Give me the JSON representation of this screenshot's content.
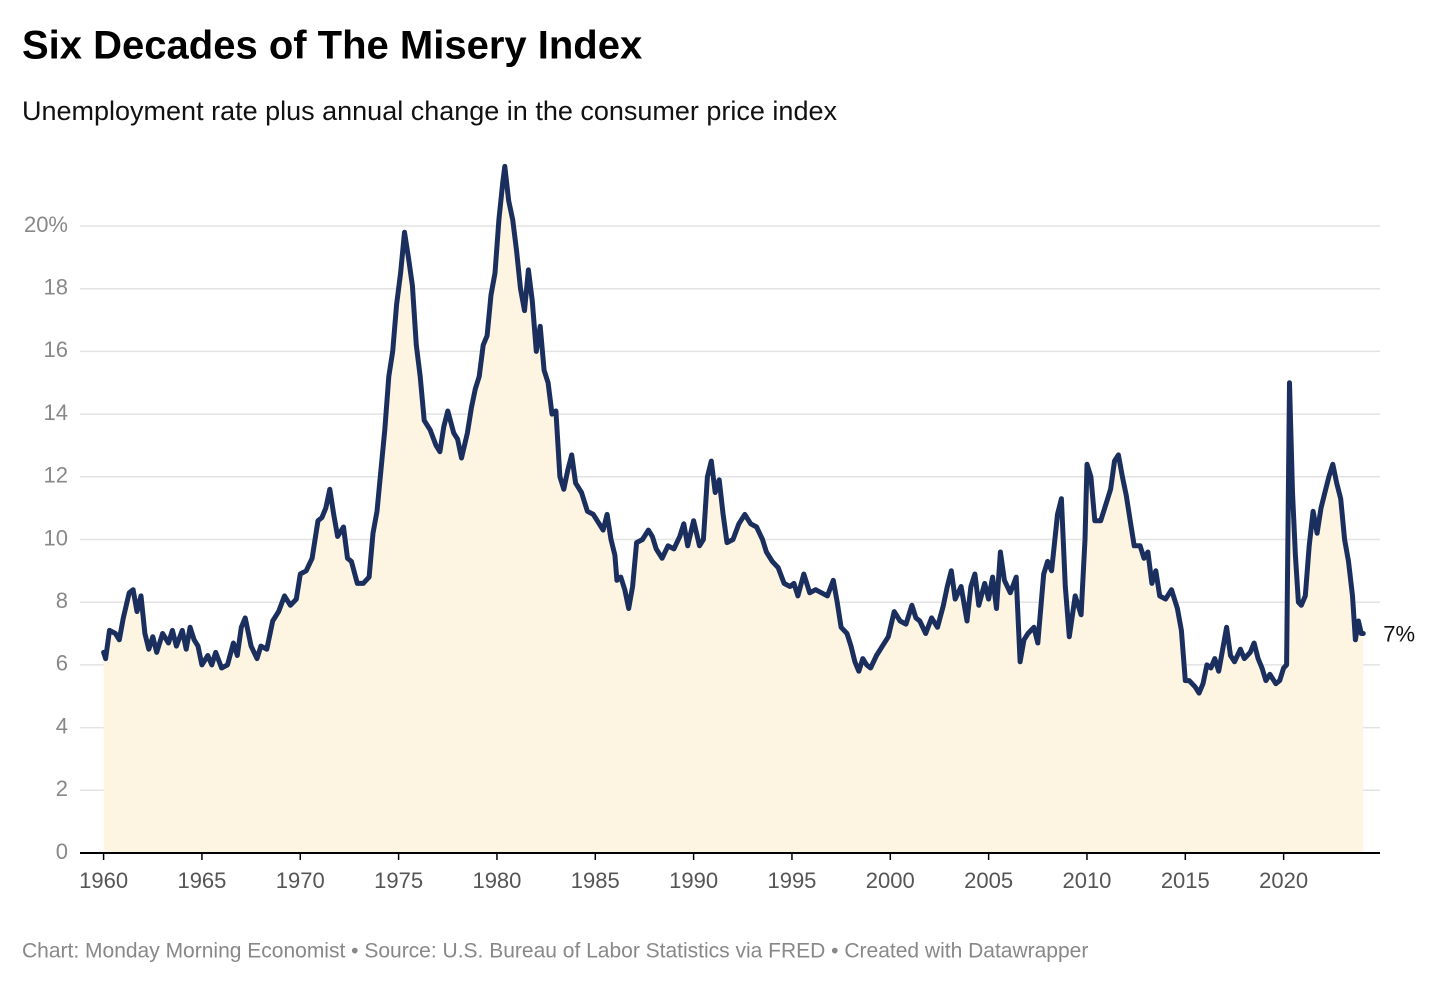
{
  "chart_data": {
    "type": "line",
    "title": "Six Decades of The Misery Index",
    "subtitle": "Unemployment rate plus annual change in the consumer price index",
    "source": "Chart: Monday Morning Economist • Source: U.S. Bureau of Labor Statistics via FRED • Created with Datawrapper",
    "end_label": "7%",
    "color": "#1b2f5e",
    "area_color": "#fdf5e1",
    "grid": true,
    "xlim": [
      1958.8,
      2024.9
    ],
    "xticks": [
      1960,
      1965,
      1970,
      1975,
      1980,
      1985,
      1990,
      1995,
      2000,
      2005,
      2010,
      2015,
      2020
    ],
    "ylim": [
      0,
      22
    ],
    "yticks": [
      0,
      2,
      4,
      6,
      8,
      10,
      12,
      14,
      16,
      18,
      {
        "value": 20,
        "label": "20%"
      }
    ],
    "x": [
      1960.0,
      1960.1,
      1960.3,
      1960.6,
      1960.8,
      1961.0,
      1961.3,
      1961.5,
      1961.7,
      1961.9,
      1962.1,
      1962.3,
      1962.5,
      1962.7,
      1963.0,
      1963.3,
      1963.5,
      1963.7,
      1964.0,
      1964.2,
      1964.4,
      1964.6,
      1964.8,
      1965.0,
      1965.3,
      1965.5,
      1965.7,
      1966.0,
      1966.3,
      1966.6,
      1966.8,
      1967.0,
      1967.2,
      1967.5,
      1967.8,
      1968.0,
      1968.3,
      1968.6,
      1968.9,
      1969.2,
      1969.5,
      1969.8,
      1970.0,
      1970.3,
      1970.6,
      1970.9,
      1971.1,
      1971.3,
      1971.5,
      1971.7,
      1971.9,
      1972.2,
      1972.4,
      1972.6,
      1972.9,
      1973.2,
      1973.5,
      1973.7,
      1973.9,
      1974.1,
      1974.3,
      1974.5,
      1974.7,
      1974.9,
      1975.1,
      1975.3,
      1975.5,
      1975.7,
      1975.9,
      1976.1,
      1976.3,
      1976.6,
      1976.9,
      1977.1,
      1977.3,
      1977.5,
      1977.8,
      1978.0,
      1978.2,
      1978.5,
      1978.7,
      1978.9,
      1979.1,
      1979.3,
      1979.5,
      1979.7,
      1979.9,
      1980.1,
      1980.3,
      1980.4,
      1980.6,
      1980.8,
      1981.0,
      1981.2,
      1981.4,
      1981.6,
      1981.8,
      1982.0,
      1982.2,
      1982.4,
      1982.6,
      1982.8,
      1983.0,
      1983.2,
      1983.4,
      1983.6,
      1983.8,
      1984.0,
      1984.3,
      1984.6,
      1984.9,
      1985.2,
      1985.4,
      1985.6,
      1985.8,
      1986.0,
      1986.1,
      1986.3,
      1986.5,
      1986.7,
      1986.9,
      1987.1,
      1987.4,
      1987.7,
      1987.9,
      1988.1,
      1988.4,
      1988.7,
      1989.0,
      1989.3,
      1989.5,
      1989.7,
      1990.0,
      1990.3,
      1990.5,
      1990.7,
      1990.9,
      1991.1,
      1991.3,
      1991.5,
      1991.7,
      1992.0,
      1992.3,
      1992.6,
      1992.9,
      1993.2,
      1993.5,
      1993.7,
      1994.0,
      1994.3,
      1994.6,
      1994.9,
      1995.1,
      1995.3,
      1995.6,
      1995.9,
      1996.2,
      1996.5,
      1996.8,
      1997.1,
      1997.3,
      1997.5,
      1997.8,
      1998.0,
      1998.2,
      1998.4,
      1998.6,
      1998.8,
      1999.0,
      1999.3,
      1999.6,
      1999.9,
      2000.2,
      2000.5,
      2000.8,
      2001.1,
      2001.3,
      2001.5,
      2001.8,
      2002.1,
      2002.4,
      2002.7,
      2002.9,
      2003.1,
      2003.3,
      2003.6,
      2003.9,
      2004.1,
      2004.3,
      2004.5,
      2004.8,
      2005.0,
      2005.2,
      2005.4,
      2005.6,
      2005.8,
      2006.1,
      2006.4,
      2006.6,
      2006.8,
      2007.0,
      2007.3,
      2007.5,
      2007.8,
      2008.0,
      2008.2,
      2008.5,
      2008.7,
      2008.9,
      2009.1,
      2009.4,
      2009.7,
      2009.9,
      2010.0,
      2010.2,
      2010.4,
      2010.7,
      2010.9,
      2011.2,
      2011.4,
      2011.6,
      2011.8,
      2012.0,
      2012.2,
      2012.4,
      2012.7,
      2012.9,
      2013.1,
      2013.3,
      2013.5,
      2013.7,
      2014.0,
      2014.3,
      2014.6,
      2014.8,
      2015.0,
      2015.2,
      2015.5,
      2015.7,
      2015.9,
      2016.1,
      2016.3,
      2016.5,
      2016.7,
      2016.9,
      2017.1,
      2017.3,
      2017.5,
      2017.8,
      2018.0,
      2018.3,
      2018.5,
      2018.7,
      2018.9,
      2019.1,
      2019.3,
      2019.6,
      2019.8,
      2020.0,
      2020.15,
      2020.3,
      2020.45,
      2020.6,
      2020.75,
      2020.9,
      2021.1,
      2021.3,
      2021.5,
      2021.7,
      2021.9,
      2022.1,
      2022.3,
      2022.5,
      2022.7,
      2022.9,
      2023.1,
      2023.3,
      2023.5,
      2023.65,
      2023.8,
      2023.95,
      2024.05
    ],
    "values": [
      6.4,
      6.2,
      7.1,
      7.0,
      6.8,
      7.5,
      8.3,
      8.4,
      7.7,
      8.2,
      7.0,
      6.5,
      6.9,
      6.4,
      7.0,
      6.7,
      7.1,
      6.6,
      7.1,
      6.5,
      7.2,
      6.8,
      6.6,
      6.0,
      6.3,
      6.0,
      6.4,
      5.9,
      6.0,
      6.7,
      6.3,
      7.2,
      7.5,
      6.6,
      6.2,
      6.6,
      6.5,
      7.4,
      7.7,
      8.2,
      7.9,
      8.1,
      8.9,
      9.0,
      9.4,
      10.6,
      10.7,
      11.0,
      11.6,
      10.8,
      10.1,
      10.4,
      9.4,
      9.3,
      8.6,
      8.6,
      8.8,
      10.2,
      10.9,
      12.2,
      13.5,
      15.2,
      16.0,
      17.5,
      18.5,
      19.8,
      19.0,
      18.1,
      16.2,
      15.2,
      13.8,
      13.5,
      13.0,
      12.8,
      13.6,
      14.1,
      13.4,
      13.2,
      12.6,
      13.4,
      14.2,
      14.8,
      15.2,
      16.2,
      16.5,
      17.8,
      18.5,
      20.2,
      21.4,
      21.9,
      20.8,
      20.2,
      19.2,
      18.0,
      17.3,
      18.6,
      17.6,
      16.0,
      16.8,
      15.4,
      15.0,
      14.0,
      14.1,
      12.0,
      11.6,
      12.2,
      12.7,
      11.8,
      11.5,
      10.9,
      10.8,
      10.5,
      10.3,
      10.8,
      10.0,
      9.5,
      8.7,
      8.8,
      8.4,
      7.8,
      8.5,
      9.9,
      10.0,
      10.3,
      10.1,
      9.7,
      9.4,
      9.8,
      9.7,
      10.1,
      10.5,
      9.8,
      10.6,
      9.8,
      10.0,
      12.0,
      12.5,
      11.5,
      11.9,
      10.8,
      9.9,
      10.0,
      10.5,
      10.8,
      10.5,
      10.4,
      10.0,
      9.6,
      9.3,
      9.1,
      8.6,
      8.5,
      8.6,
      8.2,
      8.9,
      8.3,
      8.4,
      8.3,
      8.2,
      8.7,
      8.0,
      7.2,
      7.0,
      6.6,
      6.1,
      5.8,
      6.2,
      6.0,
      5.9,
      6.3,
      6.6,
      6.9,
      7.7,
      7.4,
      7.3,
      7.9,
      7.5,
      7.4,
      7.0,
      7.5,
      7.2,
      7.9,
      8.5,
      9.0,
      8.1,
      8.5,
      7.4,
      8.5,
      8.9,
      7.9,
      8.6,
      8.1,
      8.8,
      7.8,
      9.6,
      8.7,
      8.3,
      8.8,
      6.1,
      6.8,
      7.0,
      7.2,
      6.7,
      8.9,
      9.3,
      9.0,
      10.8,
      11.3,
      8.5,
      6.9,
      8.2,
      7.6,
      10.0,
      12.4,
      12.0,
      10.6,
      10.6,
      11.0,
      11.6,
      12.5,
      12.7,
      12.0,
      11.4,
      10.6,
      9.8,
      9.8,
      9.4,
      9.6,
      8.6,
      9.0,
      8.2,
      8.1,
      8.4,
      7.8,
      7.1,
      5.5,
      5.5,
      5.3,
      5.1,
      5.4,
      6.0,
      5.9,
      6.2,
      5.8,
      6.5,
      7.2,
      6.3,
      6.1,
      6.5,
      6.2,
      6.4,
      6.7,
      6.2,
      5.9,
      5.5,
      5.7,
      5.4,
      5.5,
      5.9,
      6.0,
      15.0,
      11.5,
      9.5,
      8.0,
      7.9,
      8.2,
      9.8,
      10.9,
      10.2,
      11.0,
      11.5,
      12.0,
      12.4,
      11.8,
      11.3,
      10.0,
      9.3,
      8.2,
      6.8,
      7.4,
      7.0,
      7.0
    ]
  }
}
